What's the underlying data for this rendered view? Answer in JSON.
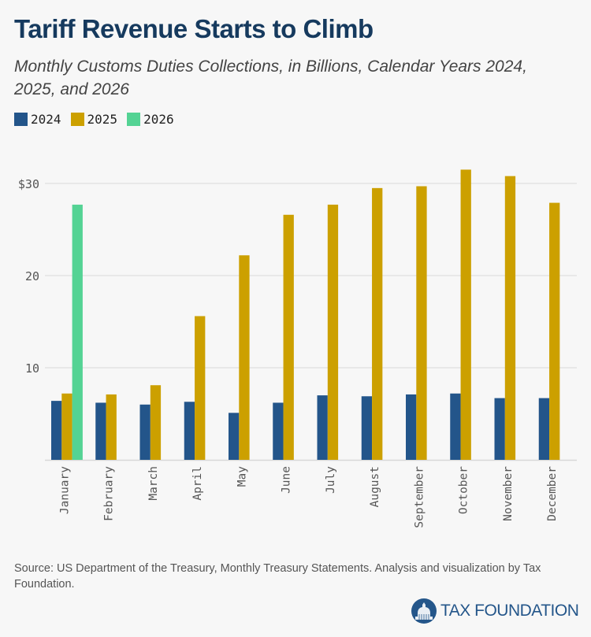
{
  "title": "Tariff Revenue Starts to Climb",
  "subtitle": "Monthly Customs Duties Collections, in Billions, Calendar Years 2024, 2025, and 2026",
  "source": "Source: US Department of the Treasury, Monthly Treasury Statements. Analysis and visualization by Tax Foundation.",
  "logo": {
    "text": "TAX FOUNDATION",
    "icon": "capitol-dome-icon"
  },
  "colors": {
    "2024": "#23558a",
    "2025": "#cca000",
    "2026": "#54d394",
    "grid": "#e0e0e0",
    "axis_text": "#555555"
  },
  "legend": [
    {
      "label": "2024",
      "color": "#23558a"
    },
    {
      "label": "2025",
      "color": "#cca000"
    },
    {
      "label": "2026",
      "color": "#54d394"
    }
  ],
  "chart_data": {
    "type": "bar",
    "title": "Tariff Revenue Starts to Climb",
    "subtitle": "Monthly Customs Duties Collections, in Billions, Calendar Years 2024, 2025, and 2026",
    "xlabel": "",
    "ylabel": "",
    "categories": [
      "January",
      "February",
      "March",
      "April",
      "May",
      "June",
      "July",
      "August",
      "September",
      "October",
      "November",
      "December"
    ],
    "series": [
      {
        "name": "2024",
        "color": "#23558a",
        "values": [
          6.4,
          6.2,
          6.0,
          6.3,
          5.1,
          6.2,
          7.0,
          6.9,
          7.1,
          7.2,
          6.7,
          6.7
        ]
      },
      {
        "name": "2025",
        "color": "#cca000",
        "values": [
          7.2,
          7.1,
          8.1,
          15.6,
          22.2,
          26.6,
          27.7,
          29.5,
          29.7,
          31.5,
          30.8,
          27.9
        ]
      },
      {
        "name": "2026",
        "color": "#54d394",
        "values": [
          27.7,
          null,
          null,
          null,
          null,
          null,
          null,
          null,
          null,
          null,
          null,
          null
        ]
      }
    ],
    "yticks": [
      10,
      20,
      30
    ],
    "ytick_labels": [
      "10",
      "20",
      "$30"
    ],
    "ylim": [
      0,
      32
    ],
    "grid": true,
    "legend_position": "top-left"
  }
}
